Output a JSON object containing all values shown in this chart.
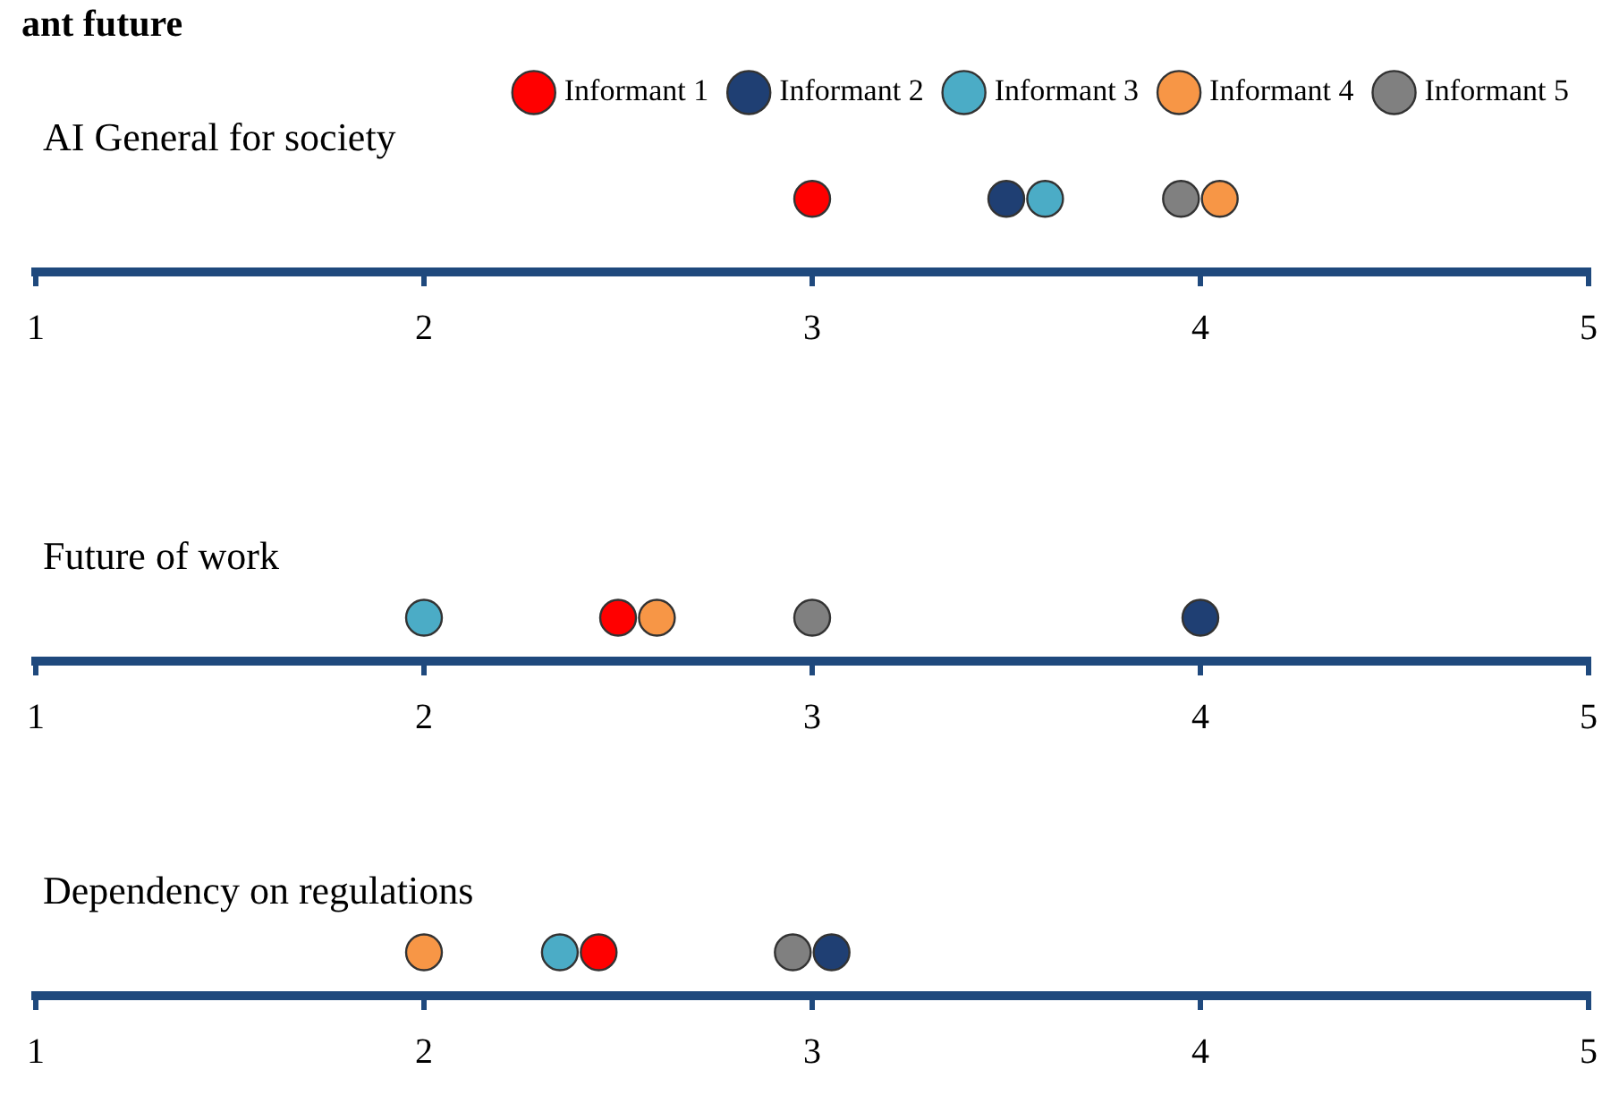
{
  "chart_data": [
    {
      "type": "scatter",
      "title": "ant future",
      "orientation": "horizontal",
      "categories": [
        "AI General for society"
      ],
      "xlim": [
        1,
        5
      ],
      "xticks": [
        1,
        2,
        3,
        4,
        5
      ],
      "grid": false,
      "legend": "top right",
      "marker": "circle",
      "series": [
        {
          "name": "Informant 1",
          "color": "#ff0000",
          "values": [
            3.0
          ]
        },
        {
          "name": "Informant 2",
          "color": "#1f3f73",
          "values": [
            3.5
          ]
        },
        {
          "name": "Informant 3",
          "color": "#4bacc6",
          "values": [
            3.6
          ]
        },
        {
          "name": "Informant 4",
          "color": "#f79646",
          "values": [
            4.05
          ]
        },
        {
          "name": "Informant 5",
          "color": "#808080",
          "values": [
            3.95
          ]
        }
      ]
    },
    {
      "type": "scatter",
      "orientation": "horizontal",
      "categories": [
        "Future of work"
      ],
      "xlim": [
        1,
        5
      ],
      "xticks": [
        1,
        2,
        3,
        4,
        5
      ],
      "grid": false,
      "marker": "circle",
      "series": [
        {
          "color": "#ff0000",
          "values": [
            2.5
          ]
        },
        {
          "color": "#1f3f73",
          "values": [
            4.0
          ]
        },
        {
          "color": "#4bacc6",
          "values": [
            2.0
          ]
        },
        {
          "color": "#f79646",
          "values": [
            2.6
          ]
        },
        {
          "color": "#808080",
          "values": [
            3.0
          ]
        }
      ]
    },
    {
      "type": "scatter",
      "orientation": "horizontal",
      "categories": [
        "Dependency on regulations"
      ],
      "xlim": [
        1,
        5
      ],
      "xticks": [
        1,
        2,
        3,
        4,
        5
      ],
      "grid": false,
      "marker": "circle",
      "series": [
        {
          "color": "#ff0000",
          "values": [
            2.45
          ]
        },
        {
          "color": "#1f3f73",
          "values": [
            3.05
          ]
        },
        {
          "color": "#4bacc6",
          "values": [
            2.35
          ]
        },
        {
          "color": "#f79646",
          "values": [
            2.0
          ]
        },
        {
          "color": "#808080",
          "values": [
            2.95
          ]
        }
      ]
    }
  ]
}
